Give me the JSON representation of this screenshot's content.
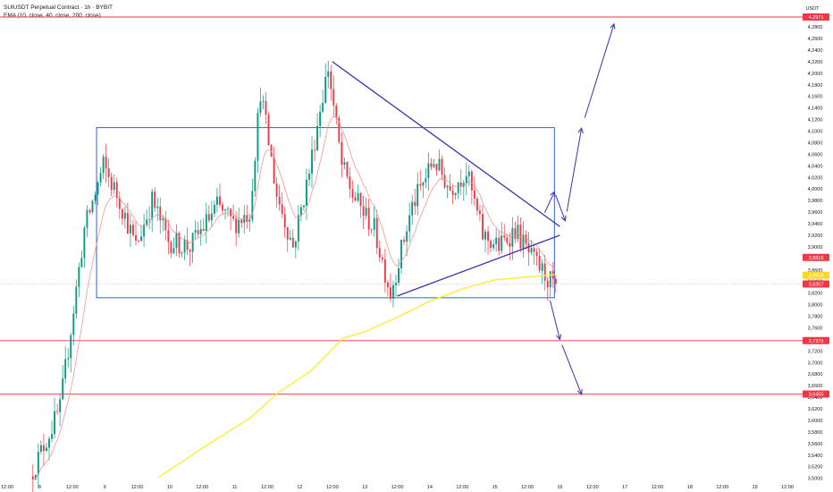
{
  "header": {
    "symbol_line": "SUIUSDT Perpetual Contract · 1h · BYBIT",
    "indicator_line": "EMA (10, close, 40, close, 200, close)"
  },
  "axis": {
    "currency": "USDT",
    "price_ticks": [
      "4,2800",
      "4,2600",
      "4,2400",
      "4,2200",
      "4,2000",
      "4,1800",
      "4,1600",
      "4,1400",
      "4,1200",
      "4,1000",
      "4,0800",
      "4,0600",
      "4,0400",
      "4,0200",
      "4,0000",
      "3,9800",
      "3,9600",
      "3,9400",
      "3,9200",
      "3,9000",
      "3,8800",
      "3,8600",
      "3,8400",
      "3,8200",
      "3,8000",
      "3,7800",
      "3,7600",
      "3,7400",
      "3,7200",
      "3,7000",
      "3,6800",
      "3,6600",
      "3,6400",
      "3,6200",
      "3,6000",
      "3,5800",
      "3,5600",
      "3,5400",
      "3,5200",
      "3,5000"
    ],
    "time_ticks": [
      "12:00",
      "8",
      "12:00",
      "9",
      "12:00",
      "10",
      "12:00",
      "11",
      "12:00",
      "12",
      "12:00",
      "13",
      "12:00",
      "14",
      "12:00",
      "15",
      "12:00",
      "16",
      "12:00",
      "17",
      "12:00",
      "18",
      "12:00",
      "19",
      "12:00"
    ]
  },
  "price_badges": [
    {
      "label": "4,2971",
      "color": "#f23645"
    },
    {
      "label": "3,8816",
      "color": "#f23645"
    },
    {
      "label": "3,8509",
      "color": "#f7d82a"
    },
    {
      "label": "3,8357",
      "color": "#f23645"
    },
    {
      "label": "3,7379",
      "color": "#f23645"
    },
    {
      "label": "3,6455",
      "color": "#f23645"
    }
  ],
  "colors": {
    "up": "#089981",
    "down": "#f23645",
    "ema_long": "#ffeb3b",
    "ema_short": "#f28f8f",
    "box": "#2f5fd0",
    "trendline": "#3f2fb5",
    "arrow": "#3f2fb5",
    "level_line": "#f23645"
  },
  "chart_data": {
    "type": "candlestick",
    "title": "SUIUSDT Perpetual Contract · 1h · BYBIT",
    "xlabel": "",
    "ylabel": "USDT",
    "ylim": [
      3.4964,
      4.2971
    ],
    "x_range": [
      "Aug 7 12:00",
      "Aug 19 12:00"
    ],
    "grid": false,
    "horizontal_levels": [
      4.2971,
      3.7379,
      3.6455
    ],
    "last_price": 3.8357,
    "ema200_last": 3.8509,
    "range_box": {
      "start": "Aug 8 21:00",
      "end": "Aug 15 22:00",
      "top": 4.106,
      "bottom": 3.812
    },
    "anchor_points": [
      {
        "time": "Aug 7 21:00",
        "price": 3.5035
      },
      {
        "time": "Aug 8 08:00",
        "price": 3.62
      },
      {
        "time": "Aug 8 17:00",
        "price": 3.93
      },
      {
        "time": "Aug 9 00:00",
        "price": 4.04
      },
      {
        "time": "Aug 9 06:00",
        "price": 3.98
      },
      {
        "time": "Aug 9 12:00",
        "price": 3.9
      },
      {
        "time": "Aug 9 18:00",
        "price": 3.98
      },
      {
        "time": "Aug 10 00:00",
        "price": 3.91
      },
      {
        "time": "Aug 10 08:00",
        "price": 3.9
      },
      {
        "time": "Aug 10 18:00",
        "price": 3.97
      },
      {
        "time": "Aug 11 00:00",
        "price": 3.94
      },
      {
        "time": "Aug 11 06:00",
        "price": 3.96
      },
      {
        "time": "Aug 11 10:00",
        "price": 4.17
      },
      {
        "time": "Aug 11 16:00",
        "price": 3.99
      },
      {
        "time": "Aug 11 22:00",
        "price": 3.9
      },
      {
        "time": "Aug 12 04:00",
        "price": 4.03
      },
      {
        "time": "Aug 12 08:00",
        "price": 4.14
      },
      {
        "time": "Aug 12 11:00",
        "price": 4.21
      },
      {
        "time": "Aug 12 16:00",
        "price": 4.04
      },
      {
        "time": "Aug 12 20:00",
        "price": 3.99
      },
      {
        "time": "Aug 13 04:00",
        "price": 3.93
      },
      {
        "time": "Aug 13 10:00",
        "price": 3.82
      },
      {
        "time": "Aug 13 18:00",
        "price": 3.97
      },
      {
        "time": "Aug 14 02:00",
        "price": 4.05
      },
      {
        "time": "Aug 14 08:00",
        "price": 4.0
      },
      {
        "time": "Aug 14 14:00",
        "price": 4.03
      },
      {
        "time": "Aug 14 20:00",
        "price": 3.92
      },
      {
        "time": "Aug 15 02:00",
        "price": 3.9
      },
      {
        "time": "Aug 15 08:00",
        "price": 3.93
      },
      {
        "time": "Aug 15 14:00",
        "price": 3.88
      },
      {
        "time": "Aug 15 22:00",
        "price": 3.835
      }
    ],
    "ema200_points": [
      {
        "time": "Aug 9 20:00",
        "price": 3.502
      },
      {
        "time": "Aug 10 12:00",
        "price": 3.552
      },
      {
        "time": "Aug 11 06:00",
        "price": 3.605
      },
      {
        "time": "Aug 11 16:00",
        "price": 3.648
      },
      {
        "time": "Aug 12 04:00",
        "price": 3.685
      },
      {
        "time": "Aug 12 16:00",
        "price": 3.742
      },
      {
        "time": "Aug 13 00:00",
        "price": 3.753
      },
      {
        "time": "Aug 13 12:00",
        "price": 3.778
      },
      {
        "time": "Aug 14 00:00",
        "price": 3.806
      },
      {
        "time": "Aug 14 12:00",
        "price": 3.827
      },
      {
        "time": "Aug 15 00:00",
        "price": 3.843
      },
      {
        "time": "Aug 15 22:00",
        "price": 3.852
      }
    ],
    "trendlines": [
      {
        "from": {
          "time": "Aug 12 12:00",
          "price": 4.22
        },
        "to": {
          "time": "Aug 16 00:00",
          "price": 3.935
        }
      },
      {
        "from": {
          "time": "Aug 13 12:00",
          "price": 3.815
        },
        "to": {
          "time": "Aug 16 00:00",
          "price": 3.92
        }
      }
    ],
    "projection_paths": [
      [
        {
          "time": "Aug 15 18:00",
          "price": 3.955
        },
        {
          "time": "Aug 15 22:00",
          "price": 3.995
        },
        {
          "time": "Aug 16 02:00",
          "price": 3.945
        },
        {
          "time": "Aug 16 08:00",
          "price": 4.105
        },
        {
          "time": "Aug 16 20:00",
          "price": 4.285
        }
      ],
      [
        {
          "time": "Aug 15 20:00",
          "price": 3.815
        },
        {
          "time": "Aug 16 00:00",
          "price": 3.74
        },
        {
          "time": "Aug 16 08:00",
          "price": 3.645
        }
      ]
    ]
  }
}
